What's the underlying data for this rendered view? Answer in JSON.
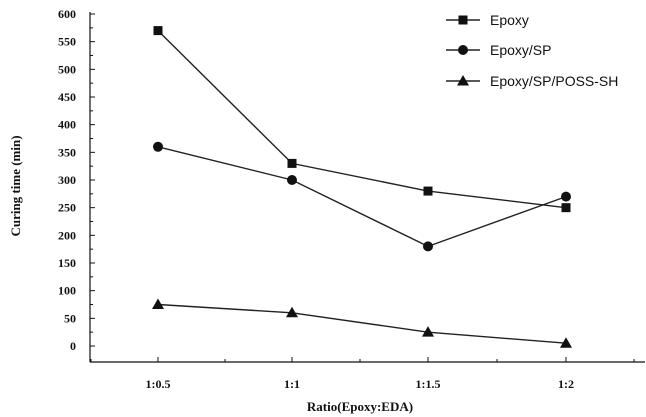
{
  "chart_data": {
    "type": "line",
    "xlabel": "Ratio(Epoxy:EDA)",
    "ylabel": "Curing time (min)",
    "categories": [
      "1:0.5",
      "1:1",
      "1:1.5",
      "1:2"
    ],
    "ylim": [
      0,
      600
    ],
    "yticks": [
      0,
      50,
      100,
      150,
      200,
      250,
      300,
      350,
      400,
      450,
      500,
      550,
      600
    ],
    "grid": false,
    "legend_position": "top-right",
    "series": [
      {
        "name": "Epoxy",
        "marker": "square",
        "values": [
          570,
          330,
          280,
          250
        ]
      },
      {
        "name": "Epoxy/SP",
        "marker": "circle",
        "values": [
          360,
          300,
          180,
          270
        ]
      },
      {
        "name": "Epoxy/SP/POSS-SH",
        "marker": "triangle",
        "values": [
          75,
          60,
          25,
          5
        ]
      }
    ],
    "colors": {
      "line": "#222222",
      "marker": "#111111"
    }
  }
}
